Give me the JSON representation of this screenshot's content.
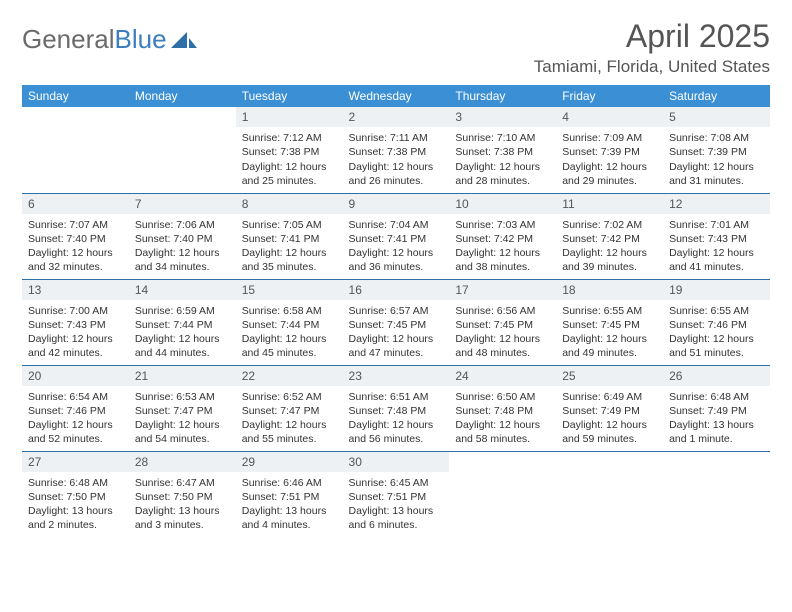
{
  "logo": {
    "text_gray": "General",
    "text_blue": "Blue"
  },
  "title": "April 2025",
  "location": "Tamiami, Florida, United States",
  "colors": {
    "header_bg": "#3b8fd4",
    "header_text": "#ffffff",
    "daynum_bg": "#eef1f4",
    "row_border": "#2f6fa8",
    "logo_gray": "#6b6b6b",
    "logo_blue": "#3b7fbf",
    "title_color": "#555555"
  },
  "weekdays": [
    "Sunday",
    "Monday",
    "Tuesday",
    "Wednesday",
    "Thursday",
    "Friday",
    "Saturday"
  ],
  "weeks": [
    [
      null,
      null,
      {
        "n": "1",
        "sr": "7:12 AM",
        "ss": "7:38 PM",
        "dl": "12 hours and 25 minutes."
      },
      {
        "n": "2",
        "sr": "7:11 AM",
        "ss": "7:38 PM",
        "dl": "12 hours and 26 minutes."
      },
      {
        "n": "3",
        "sr": "7:10 AM",
        "ss": "7:38 PM",
        "dl": "12 hours and 28 minutes."
      },
      {
        "n": "4",
        "sr": "7:09 AM",
        "ss": "7:39 PM",
        "dl": "12 hours and 29 minutes."
      },
      {
        "n": "5",
        "sr": "7:08 AM",
        "ss": "7:39 PM",
        "dl": "12 hours and 31 minutes."
      }
    ],
    [
      {
        "n": "6",
        "sr": "7:07 AM",
        "ss": "7:40 PM",
        "dl": "12 hours and 32 minutes."
      },
      {
        "n": "7",
        "sr": "7:06 AM",
        "ss": "7:40 PM",
        "dl": "12 hours and 34 minutes."
      },
      {
        "n": "8",
        "sr": "7:05 AM",
        "ss": "7:41 PM",
        "dl": "12 hours and 35 minutes."
      },
      {
        "n": "9",
        "sr": "7:04 AM",
        "ss": "7:41 PM",
        "dl": "12 hours and 36 minutes."
      },
      {
        "n": "10",
        "sr": "7:03 AM",
        "ss": "7:42 PM",
        "dl": "12 hours and 38 minutes."
      },
      {
        "n": "11",
        "sr": "7:02 AM",
        "ss": "7:42 PM",
        "dl": "12 hours and 39 minutes."
      },
      {
        "n": "12",
        "sr": "7:01 AM",
        "ss": "7:43 PM",
        "dl": "12 hours and 41 minutes."
      }
    ],
    [
      {
        "n": "13",
        "sr": "7:00 AM",
        "ss": "7:43 PM",
        "dl": "12 hours and 42 minutes."
      },
      {
        "n": "14",
        "sr": "6:59 AM",
        "ss": "7:44 PM",
        "dl": "12 hours and 44 minutes."
      },
      {
        "n": "15",
        "sr": "6:58 AM",
        "ss": "7:44 PM",
        "dl": "12 hours and 45 minutes."
      },
      {
        "n": "16",
        "sr": "6:57 AM",
        "ss": "7:45 PM",
        "dl": "12 hours and 47 minutes."
      },
      {
        "n": "17",
        "sr": "6:56 AM",
        "ss": "7:45 PM",
        "dl": "12 hours and 48 minutes."
      },
      {
        "n": "18",
        "sr": "6:55 AM",
        "ss": "7:45 PM",
        "dl": "12 hours and 49 minutes."
      },
      {
        "n": "19",
        "sr": "6:55 AM",
        "ss": "7:46 PM",
        "dl": "12 hours and 51 minutes."
      }
    ],
    [
      {
        "n": "20",
        "sr": "6:54 AM",
        "ss": "7:46 PM",
        "dl": "12 hours and 52 minutes."
      },
      {
        "n": "21",
        "sr": "6:53 AM",
        "ss": "7:47 PM",
        "dl": "12 hours and 54 minutes."
      },
      {
        "n": "22",
        "sr": "6:52 AM",
        "ss": "7:47 PM",
        "dl": "12 hours and 55 minutes."
      },
      {
        "n": "23",
        "sr": "6:51 AM",
        "ss": "7:48 PM",
        "dl": "12 hours and 56 minutes."
      },
      {
        "n": "24",
        "sr": "6:50 AM",
        "ss": "7:48 PM",
        "dl": "12 hours and 58 minutes."
      },
      {
        "n": "25",
        "sr": "6:49 AM",
        "ss": "7:49 PM",
        "dl": "12 hours and 59 minutes."
      },
      {
        "n": "26",
        "sr": "6:48 AM",
        "ss": "7:49 PM",
        "dl": "13 hours and 1 minute."
      }
    ],
    [
      {
        "n": "27",
        "sr": "6:48 AM",
        "ss": "7:50 PM",
        "dl": "13 hours and 2 minutes."
      },
      {
        "n": "28",
        "sr": "6:47 AM",
        "ss": "7:50 PM",
        "dl": "13 hours and 3 minutes."
      },
      {
        "n": "29",
        "sr": "6:46 AM",
        "ss": "7:51 PM",
        "dl": "13 hours and 4 minutes."
      },
      {
        "n": "30",
        "sr": "6:45 AM",
        "ss": "7:51 PM",
        "dl": "13 hours and 6 minutes."
      },
      null,
      null,
      null
    ]
  ],
  "labels": {
    "sunrise": "Sunrise:",
    "sunset": "Sunset:",
    "daylight": "Daylight:"
  }
}
